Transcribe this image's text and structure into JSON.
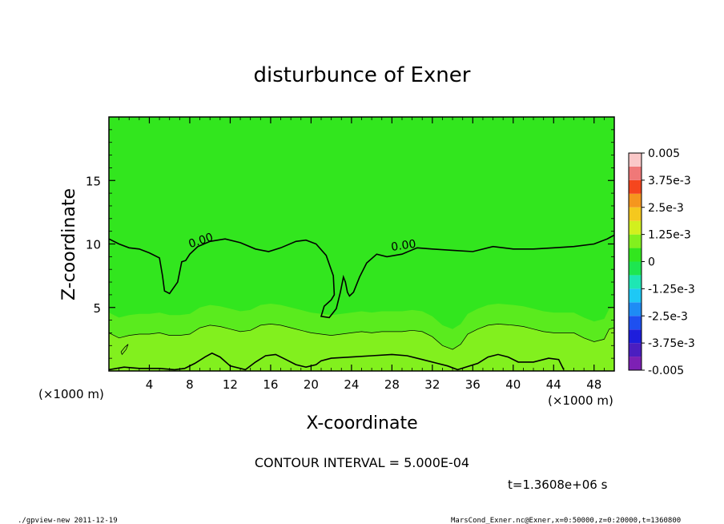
{
  "chart_data": {
    "type": "heatmap",
    "title": "disturbunce of Exner",
    "xlabel": "X-coordinate",
    "ylabel": "Z-coordinate",
    "x_unit_left": "(×1000 m)",
    "x_unit_right": "(×1000 m)",
    "xlim": [
      0,
      50
    ],
    "ylim": [
      0,
      20
    ],
    "x_ticks": [
      4,
      8,
      12,
      16,
      20,
      24,
      28,
      32,
      36,
      40,
      44,
      48
    ],
    "y_ticks": [
      5,
      10,
      15
    ],
    "contour_interval_label": "CONTOUR INTERVAL = 5.000E-04",
    "time_label": "t=1.3608e+06 s",
    "contour_labels": [
      "0.00",
      "0.00"
    ],
    "colorbar": {
      "tick_labels": [
        "0.005",
        "3.75e-3",
        "2.5e-3",
        "1.25e-3",
        "0",
        "-1.25e-3",
        "-2.5e-3",
        "-3.75e-3",
        "-0.005"
      ],
      "range": [
        -0.005,
        0.005
      ],
      "levels": [
        {
          "lo": -0.005,
          "hi": -0.004375,
          "color": "#7d20b4"
        },
        {
          "lo": -0.004375,
          "hi": -0.00375,
          "color": "#4b1ec0"
        },
        {
          "lo": -0.00375,
          "hi": -0.003125,
          "color": "#1e1edc"
        },
        {
          "lo": -0.003125,
          "hi": -0.0025,
          "color": "#1e50f0"
        },
        {
          "lo": -0.0025,
          "hi": -0.001875,
          "color": "#1e8cf5"
        },
        {
          "lo": -0.001875,
          "hi": -0.00125,
          "color": "#1ec8f5"
        },
        {
          "lo": -0.00125,
          "hi": -0.000625,
          "color": "#1ee6b4"
        },
        {
          "lo": -0.000625,
          "hi": 0,
          "color": "#1ee650"
        },
        {
          "lo": 0,
          "hi": 0.000625,
          "color": "#32e61e"
        },
        {
          "lo": 0.000625,
          "hi": 0.00125,
          "color": "#82f01e"
        },
        {
          "lo": 0.00125,
          "hi": 0.001875,
          "color": "#d2f01e"
        },
        {
          "lo": 0.001875,
          "hi": 0.0025,
          "color": "#f5c81e"
        },
        {
          "lo": 0.0025,
          "hi": 0.003125,
          "color": "#f5961e"
        },
        {
          "lo": 0.003125,
          "hi": 0.00375,
          "color": "#f5461e"
        },
        {
          "lo": 0.00375,
          "hi": 0.004375,
          "color": "#f07878"
        },
        {
          "lo": 0.004375,
          "hi": 0.005,
          "color": "#fac8c8"
        }
      ]
    },
    "field_bands": [
      {
        "name": "upper",
        "color": "#32e61e"
      },
      {
        "name": "mid",
        "color": "#5aeb1e"
      },
      {
        "name": "lower",
        "color": "#82f01e"
      }
    ],
    "zero_contour_upper": [
      [
        0,
        10.4
      ],
      [
        1,
        10.0
      ],
      [
        2,
        9.7
      ],
      [
        3,
        9.6
      ],
      [
        4,
        9.3
      ],
      [
        5,
        8.9
      ],
      [
        5.3,
        7.5
      ],
      [
        5.5,
        6.3
      ],
      [
        6,
        6.1
      ],
      [
        6.8,
        7.0
      ],
      [
        7.2,
        8.6
      ],
      [
        7.6,
        8.7
      ],
      [
        8,
        9.2
      ],
      [
        8.8,
        9.8
      ],
      [
        10,
        10.2
      ],
      [
        11.5,
        10.4
      ],
      [
        13,
        10.1
      ],
      [
        14.5,
        9.6
      ],
      [
        15.8,
        9.4
      ],
      [
        17,
        9.7
      ],
      [
        18.5,
        10.2
      ],
      [
        19.5,
        10.3
      ],
      [
        20.5,
        10.0
      ],
      [
        21.5,
        9.1
      ],
      [
        22.2,
        7.5
      ],
      [
        22.3,
        6.0
      ],
      [
        22.0,
        5.6
      ],
      [
        21.3,
        5.1
      ],
      [
        21.0,
        4.3
      ],
      [
        21.8,
        4.2
      ],
      [
        22.5,
        4.9
      ],
      [
        22.9,
        6.2
      ],
      [
        23.2,
        7.4
      ],
      [
        23.4,
        7.0
      ],
      [
        23.6,
        6.2
      ],
      [
        23.8,
        5.9
      ],
      [
        24.2,
        6.2
      ],
      [
        24.8,
        7.4
      ],
      [
        25.5,
        8.5
      ],
      [
        26.5,
        9.2
      ],
      [
        27.5,
        9.0
      ],
      [
        29,
        9.2
      ],
      [
        30.5,
        9.7
      ],
      [
        32,
        9.6
      ],
      [
        34,
        9.5
      ],
      [
        36,
        9.4
      ],
      [
        38,
        9.8
      ],
      [
        40,
        9.6
      ],
      [
        42,
        9.6
      ],
      [
        44,
        9.7
      ],
      [
        46,
        9.8
      ],
      [
        48,
        10.0
      ],
      [
        49.3,
        10.4
      ],
      [
        50,
        10.7
      ]
    ],
    "zero_contour_lower": [
      [
        0,
        0.1
      ],
      [
        1.5,
        0.3
      ],
      [
        3,
        0.2
      ],
      [
        5,
        0.2
      ],
      [
        6.5,
        0.1
      ],
      [
        7.5,
        0.2
      ],
      [
        8.5,
        0.6
      ],
      [
        9.5,
        1.1
      ],
      [
        10.2,
        1.4
      ],
      [
        11,
        1.1
      ],
      [
        12,
        0.4
      ],
      [
        13.5,
        0.1
      ],
      [
        14.5,
        0.7
      ],
      [
        15.5,
        1.2
      ],
      [
        16.5,
        1.3
      ],
      [
        17.5,
        0.9
      ],
      [
        18.5,
        0.5
      ],
      [
        19.5,
        0.3
      ],
      [
        20.5,
        0.5
      ],
      [
        21,
        0.8
      ],
      [
        22,
        1.0
      ],
      [
        24,
        1.1
      ],
      [
        26,
        1.2
      ],
      [
        28,
        1.3
      ],
      [
        29.5,
        1.2
      ],
      [
        31,
        0.9
      ],
      [
        32.5,
        0.6
      ],
      [
        33.5,
        0.4
      ],
      [
        34.5,
        0.1
      ],
      [
        36.5,
        0.6
      ],
      [
        37.5,
        1.1
      ],
      [
        38.5,
        1.3
      ],
      [
        39.5,
        1.1
      ],
      [
        40.5,
        0.7
      ],
      [
        42,
        0.7
      ],
      [
        43.5,
        1.0
      ],
      [
        44.5,
        0.9
      ],
      [
        45,
        0.1
      ]
    ],
    "thin_contour": [
      [
        0,
        3.0
      ],
      [
        1,
        2.6
      ],
      [
        2,
        2.8
      ],
      [
        3,
        2.9
      ],
      [
        4,
        2.9
      ],
      [
        5,
        3.0
      ],
      [
        6,
        2.8
      ],
      [
        7,
        2.8
      ],
      [
        8,
        2.9
      ],
      [
        9,
        3.4
      ],
      [
        10,
        3.6
      ],
      [
        11,
        3.5
      ],
      [
        12,
        3.3
      ],
      [
        13,
        3.1
      ],
      [
        14,
        3.2
      ],
      [
        15,
        3.6
      ],
      [
        16,
        3.7
      ],
      [
        17,
        3.6
      ],
      [
        18,
        3.4
      ],
      [
        19,
        3.2
      ],
      [
        20,
        3.0
      ],
      [
        21,
        2.9
      ],
      [
        22,
        2.8
      ],
      [
        23,
        2.9
      ],
      [
        24,
        3.0
      ],
      [
        25,
        3.1
      ],
      [
        26,
        3.0
      ],
      [
        27,
        3.1
      ],
      [
        28,
        3.1
      ],
      [
        29,
        3.1
      ],
      [
        30,
        3.2
      ],
      [
        31,
        3.1
      ],
      [
        32,
        2.7
      ],
      [
        33,
        2.0
      ],
      [
        34,
        1.7
      ],
      [
        34.8,
        2.1
      ],
      [
        35.5,
        2.9
      ],
      [
        36.5,
        3.3
      ],
      [
        37.5,
        3.6
      ],
      [
        38.5,
        3.7
      ],
      [
        40,
        3.6
      ],
      [
        41,
        3.5
      ],
      [
        42,
        3.3
      ],
      [
        43,
        3.1
      ],
      [
        44,
        3.0
      ],
      [
        45,
        3.0
      ],
      [
        46,
        3.0
      ],
      [
        47,
        2.6
      ],
      [
        48,
        2.3
      ],
      [
        49,
        2.5
      ],
      [
        49.5,
        3.3
      ],
      [
        50,
        3.4
      ]
    ],
    "small_loop": [
      [
        1.2,
        1.5
      ],
      [
        1.6,
        1.9
      ],
      [
        1.9,
        2.1
      ],
      [
        1.7,
        1.7
      ],
      [
        1.3,
        1.3
      ],
      [
        1.2,
        1.5
      ]
    ]
  },
  "footer": {
    "left": "./gpview-new   2011-12-19",
    "right": "MarsCond_Exner.nc@Exner,x=0:50000,z=0:20000,t=1360800"
  }
}
